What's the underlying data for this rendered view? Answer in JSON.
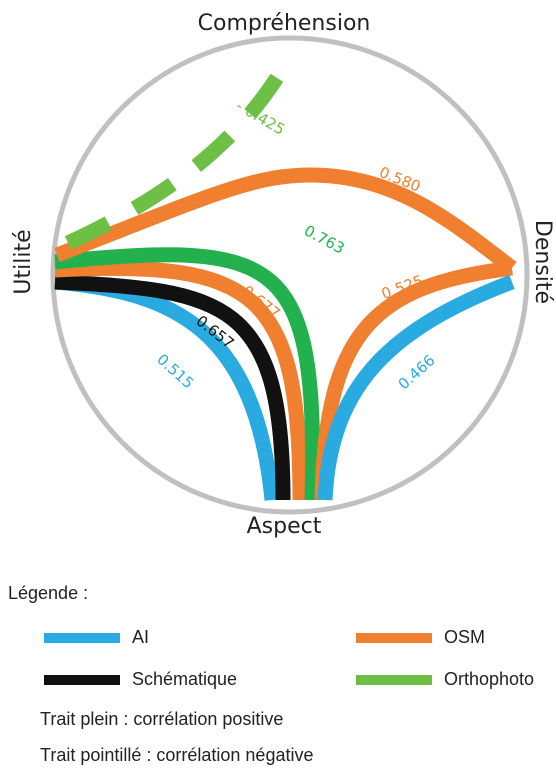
{
  "axes": {
    "top": "Compréhension",
    "left": "Utilité",
    "right": "Densité",
    "bottom": "Aspect"
  },
  "colors": {
    "ai": "#29abe2",
    "osm": "#f07f2f",
    "schematique": "#111111",
    "orthophoto": "#22b14c",
    "orthophoto_legend": "#6dbf46",
    "negative": "#6dbf46",
    "circle": "#c0c0c0"
  },
  "links": [
    {
      "from": "Utilité",
      "to": "Aspect",
      "layer": "AI",
      "value": "0.515",
      "style": "solid"
    },
    {
      "from": "Utilité",
      "to": "Aspect",
      "layer": "Schématique",
      "value": "0.657",
      "style": "solid"
    },
    {
      "from": "Utilité",
      "to": "Aspect",
      "layer": "OSM",
      "value": "0.677",
      "style": "solid"
    },
    {
      "from": "Utilité",
      "to": "Aspect",
      "layer": "Orthophoto",
      "value": "0.763",
      "style": "solid"
    },
    {
      "from": "Utilité",
      "to": "Densité",
      "layer": "OSM",
      "value": "0.580",
      "style": "solid"
    },
    {
      "from": "Densité",
      "to": "Aspect",
      "layer": "OSM",
      "value": "0.525",
      "style": "solid"
    },
    {
      "from": "Densité",
      "to": "Aspect",
      "layer": "AI",
      "value": "0.466",
      "style": "solid"
    },
    {
      "from": "Utilité",
      "to": "Compréhension",
      "layer": "Orthophoto",
      "value": "- 0.425",
      "style": "dashed"
    }
  ],
  "legend": {
    "title": "Légende :",
    "items": {
      "ai": "AI",
      "osm": "OSM",
      "schematique": "Schématique",
      "orthophoto": "Orthophoto"
    },
    "solid_note": "Trait plein : corrélation positive",
    "dashed_note": "Trait pointillé : corrélation négative"
  }
}
